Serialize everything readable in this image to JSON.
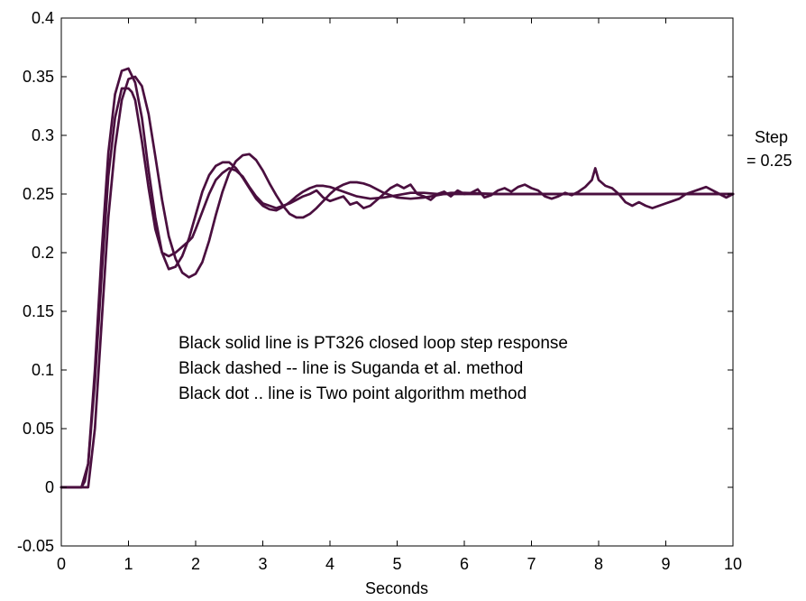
{
  "chart_data": {
    "type": "line",
    "title": "",
    "xlabel": "Seconds",
    "ylabel": "",
    "xlim": [
      0,
      10
    ],
    "ylim": [
      -0.05,
      0.4
    ],
    "x_ticks": [
      0,
      1,
      2,
      3,
      4,
      5,
      6,
      7,
      8,
      9,
      10
    ],
    "y_ticks": [
      -0.05,
      0,
      0.05,
      0.1,
      0.15,
      0.2,
      0.25,
      0.3,
      0.35,
      0.4
    ],
    "x_tick_labels": [
      "0",
      "1",
      "2",
      "3",
      "4",
      "5",
      "6",
      "7",
      "8",
      "9",
      "10"
    ],
    "y_tick_labels": [
      "-0.05",
      "0",
      "0.05",
      "0.1",
      "0.15",
      "0.2",
      "0.25",
      "0.3",
      "0.35",
      "0.4"
    ],
    "grid": false,
    "line_color": "#4a0f3f",
    "annotations": [
      "Black solid line is PT326 closed loop step response",
      "Black dashed -- line is Suganda et al. method",
      "Black dot .. line is Two point algorithm method"
    ],
    "side_label": [
      "Step",
      "= 0.25"
    ],
    "series": [
      {
        "x": [
          0,
          0.1,
          0.2,
          0.3,
          0.35,
          0.4,
          0.5,
          0.6,
          0.7,
          0.8,
          0.9,
          1.0,
          1.05,
          1.1,
          1.2,
          1.3,
          1.4,
          1.5,
          1.6,
          1.7,
          1.8,
          1.9,
          1.95,
          2.0,
          2.1,
          2.2,
          2.3,
          2.4,
          2.5,
          2.6,
          2.7,
          2.8,
          2.9,
          3.0,
          3.1,
          3.2,
          3.3,
          3.4,
          3.5,
          3.6,
          3.7,
          3.8,
          3.9,
          4.0,
          4.1,
          4.2,
          4.3,
          4.4,
          4.5,
          4.6,
          4.7,
          4.8,
          4.9,
          5.0,
          5.1,
          5.2,
          5.3,
          5.4,
          5.5,
          5.6,
          5.7,
          5.8,
          5.9,
          6.0,
          6.1,
          6.2,
          6.3,
          6.4,
          6.5,
          6.6,
          6.7,
          6.8,
          6.9,
          7.0,
          7.1,
          7.2,
          7.3,
          7.4,
          7.5,
          7.6,
          7.7,
          7.8,
          7.9,
          7.95,
          8.0,
          8.1,
          8.2,
          8.3,
          8.4,
          8.5,
          8.6,
          8.7,
          8.8,
          8.9,
          9.0,
          9.1,
          9.2,
          9.3,
          9.4,
          9.5,
          9.6,
          9.7,
          9.8,
          9.9,
          10.0
        ],
        "values": [
          0,
          0,
          0,
          0,
          0.005,
          0.02,
          0.09,
          0.18,
          0.265,
          0.315,
          0.34,
          0.34,
          0.337,
          0.33,
          0.295,
          0.255,
          0.22,
          0.2,
          0.197,
          0.2,
          0.205,
          0.21,
          0.213,
          0.22,
          0.235,
          0.25,
          0.262,
          0.268,
          0.272,
          0.27,
          0.265,
          0.256,
          0.248,
          0.242,
          0.24,
          0.238,
          0.24,
          0.242,
          0.245,
          0.248,
          0.25,
          0.253,
          0.247,
          0.244,
          0.246,
          0.248,
          0.241,
          0.243,
          0.238,
          0.24,
          0.245,
          0.25,
          0.255,
          0.258,
          0.255,
          0.258,
          0.25,
          0.248,
          0.245,
          0.25,
          0.252,
          0.248,
          0.253,
          0.25,
          0.251,
          0.254,
          0.247,
          0.249,
          0.253,
          0.255,
          0.252,
          0.256,
          0.258,
          0.255,
          0.253,
          0.248,
          0.246,
          0.248,
          0.251,
          0.249,
          0.252,
          0.256,
          0.262,
          0.272,
          0.262,
          0.257,
          0.255,
          0.25,
          0.243,
          0.24,
          0.243,
          0.24,
          0.238,
          0.24,
          0.242,
          0.244,
          0.246,
          0.25,
          0.252,
          0.254,
          0.256,
          0.253,
          0.25,
          0.247,
          0.25
        ]
      },
      {
        "x": [
          0,
          0.1,
          0.2,
          0.3,
          0.4,
          0.5,
          0.6,
          0.7,
          0.8,
          0.9,
          1.0,
          1.1,
          1.2,
          1.3,
          1.4,
          1.5,
          1.6,
          1.7,
          1.8,
          1.9,
          2.0,
          2.1,
          2.2,
          2.3,
          2.4,
          2.5,
          2.6,
          2.7,
          2.8,
          2.9,
          3.0,
          3.1,
          3.2,
          3.3,
          3.4,
          3.5,
          3.6,
          3.7,
          3.8,
          3.9,
          4.0,
          4.2,
          4.4,
          4.6,
          4.8,
          5.0,
          5.2,
          5.4,
          5.6,
          5.8,
          6.0,
          6.5,
          7.0,
          7.5,
          8.0,
          8.5,
          9.0,
          9.5,
          10.0
        ],
        "values": [
          0,
          0,
          0,
          0,
          0.02,
          0.1,
          0.2,
          0.285,
          0.335,
          0.355,
          0.357,
          0.345,
          0.315,
          0.27,
          0.23,
          0.2,
          0.186,
          0.188,
          0.197,
          0.212,
          0.232,
          0.252,
          0.266,
          0.274,
          0.277,
          0.277,
          0.272,
          0.264,
          0.255,
          0.246,
          0.24,
          0.237,
          0.236,
          0.239,
          0.243,
          0.248,
          0.252,
          0.255,
          0.257,
          0.257,
          0.256,
          0.252,
          0.248,
          0.246,
          0.247,
          0.249,
          0.251,
          0.251,
          0.25,
          0.25,
          0.25,
          0.25,
          0.25,
          0.25,
          0.25,
          0.25,
          0.25,
          0.25,
          0.25
        ]
      },
      {
        "x": [
          0,
          0.1,
          0.2,
          0.3,
          0.4,
          0.5,
          0.6,
          0.7,
          0.8,
          0.9,
          1.0,
          1.1,
          1.2,
          1.3,
          1.4,
          1.5,
          1.6,
          1.7,
          1.8,
          1.9,
          2.0,
          2.1,
          2.2,
          2.3,
          2.4,
          2.5,
          2.6,
          2.7,
          2.8,
          2.9,
          3.0,
          3.1,
          3.2,
          3.3,
          3.4,
          3.5,
          3.6,
          3.7,
          3.8,
          3.9,
          4.0,
          4.1,
          4.2,
          4.3,
          4.4,
          4.5,
          4.6,
          4.7,
          4.8,
          4.9,
          5.0,
          5.2,
          5.4,
          5.6,
          5.8,
          6.0,
          6.5,
          7.0,
          7.5,
          8.0,
          8.5,
          9.0,
          9.5,
          10.0
        ],
        "values": [
          0,
          0,
          0,
          0,
          0.0,
          0.05,
          0.14,
          0.23,
          0.29,
          0.33,
          0.348,
          0.35,
          0.342,
          0.318,
          0.282,
          0.245,
          0.214,
          0.195,
          0.183,
          0.179,
          0.182,
          0.192,
          0.21,
          0.232,
          0.252,
          0.268,
          0.278,
          0.283,
          0.284,
          0.279,
          0.27,
          0.259,
          0.249,
          0.24,
          0.233,
          0.23,
          0.23,
          0.233,
          0.238,
          0.244,
          0.25,
          0.255,
          0.258,
          0.26,
          0.26,
          0.259,
          0.257,
          0.254,
          0.251,
          0.249,
          0.247,
          0.246,
          0.247,
          0.249,
          0.251,
          0.251,
          0.25,
          0.25,
          0.25,
          0.25,
          0.25,
          0.25,
          0.25,
          0.25
        ]
      }
    ]
  }
}
